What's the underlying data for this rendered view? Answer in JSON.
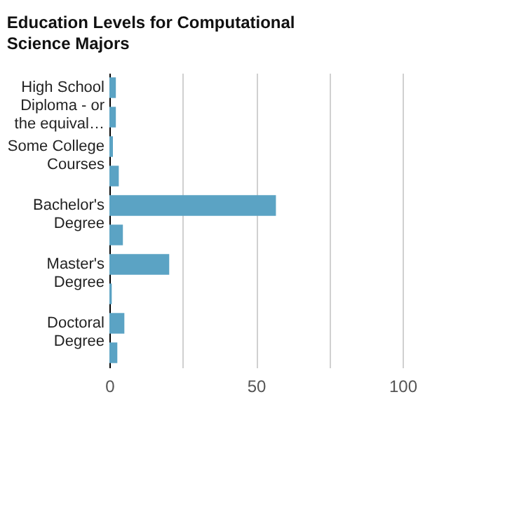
{
  "chart_data": {
    "type": "bar",
    "orientation": "horizontal",
    "title": "Education Levels for Computational Science Majors",
    "categories": [
      "High School Diploma - or the equival…",
      null,
      "Some College Courses",
      null,
      "Bachelor's Degree",
      null,
      "Master's Degree",
      null,
      "Doctoral Degree",
      null
    ],
    "values": [
      2.2,
      2.2,
      1.2,
      3.2,
      56.8,
      4.6,
      20.4,
      0.8,
      5.1,
      2.7
    ],
    "color": "#5ba3c4",
    "xlim": [
      0,
      100
    ],
    "xticks": [
      0,
      {
        "value": 25,
        "label": null
      },
      50,
      {
        "value": 75,
        "label": null
      },
      100
    ],
    "grid": "x"
  }
}
